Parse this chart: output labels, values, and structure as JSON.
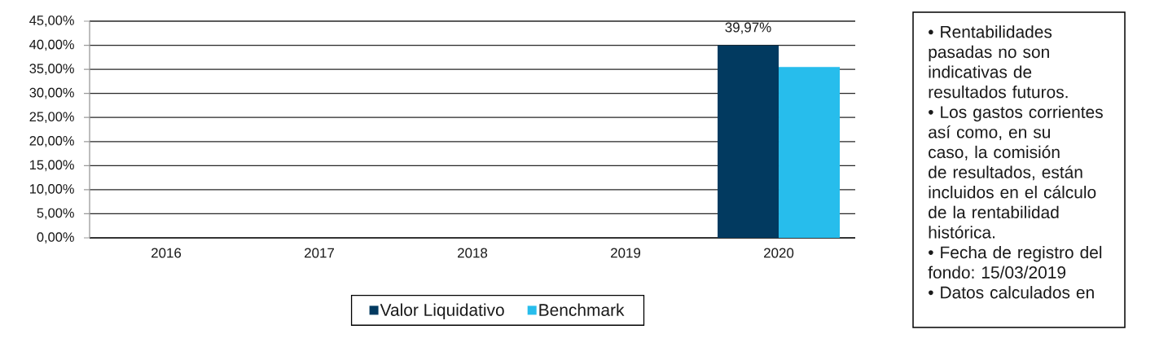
{
  "chart_data": {
    "type": "bar",
    "categories": [
      "2016",
      "2017",
      "2018",
      "2019",
      "2020"
    ],
    "series": [
      {
        "name": "Valor Liquidativo",
        "color": "#023a60",
        "values": [
          null,
          null,
          null,
          null,
          39.97
        ],
        "value_labels": [
          null,
          null,
          null,
          null,
          "39,97%"
        ]
      },
      {
        "name": "Benchmark",
        "color": "#27bdec",
        "values": [
          null,
          null,
          null,
          null,
          35.5
        ]
      }
    ],
    "ylim": [
      0,
      45
    ],
    "yticks": [
      {
        "value": 0,
        "label": "0,00%"
      },
      {
        "value": 5,
        "label": "5,00%"
      },
      {
        "value": 10,
        "label": "10,00%"
      },
      {
        "value": 15,
        "label": "15,00%"
      },
      {
        "value": 20,
        "label": "20,00%"
      },
      {
        "value": 25,
        "label": "25,00%"
      },
      {
        "value": 30,
        "label": "30,00%"
      },
      {
        "value": 35,
        "label": "35,00%"
      },
      {
        "value": 40,
        "label": "40,00%"
      },
      {
        "value": 45,
        "label": "45,00%"
      }
    ],
    "grid": "y",
    "legend": "bottom",
    "annotations": [
      "• Rentabilidades pasadas no son indicativas de resultados futuros.",
      "• Los gastos corrientes así como, en su caso, la comisión de resultados, están incluidos en el cálculo de la rentabilidad histórica.",
      "• Fecha de registro del fondo: 15/03/2019",
      "• Datos calculados en"
    ]
  }
}
